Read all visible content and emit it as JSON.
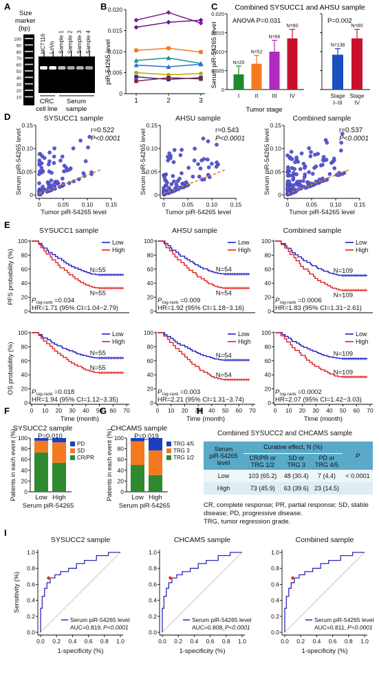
{
  "panel_letters": [
    "A",
    "B",
    "C",
    "D",
    "E",
    "F",
    "G",
    "H",
    "I"
  ],
  "panelA": {
    "size_marker": [
      "Size",
      "marker",
      "(bp)"
    ],
    "yticks": [
      "100",
      "90",
      "80",
      "70",
      "60",
      "50",
      "40",
      "30",
      "20",
      "10"
    ],
    "lanes": [
      "HCT116",
      "LoVo",
      "Sample 1",
      "Sample 2",
      "Sample 3",
      "Sample 4"
    ],
    "group1": [
      "CRC",
      "cell line"
    ],
    "group2": [
      "Serum",
      "sample"
    ]
  },
  "panelC": {
    "title": "Combined SYSUCC1 and AHSU sample",
    "anova": "ANOVA P=0.031",
    "p2": "P=0.002",
    "ylabel": "Serum piR-54265 level",
    "xlabel": "Tumor stage",
    "stage_labels": [
      "I",
      "II",
      "III",
      "IV"
    ],
    "n_labels": [
      "N=20",
      "N=52",
      "N=66",
      "N=80"
    ],
    "n2_labels": [
      "N=138",
      "N=80"
    ],
    "stage2_labels": [
      "Stage",
      "I–III",
      "Stage",
      "IV"
    ]
  },
  "panelD": {
    "titles": [
      "SYSUCC1 sample",
      "AHSU sample",
      "Combined sample"
    ],
    "r_values": [
      "r=0.522",
      "r=0.543",
      "r=0.537"
    ],
    "p_values": [
      "P<0.0001",
      "P<0.0001",
      "P<0.0001"
    ],
    "ylabel": "Serum piR-54265 level",
    "xlabel": "Tumor piR-54265 level"
  },
  "panelE": {
    "titles": [
      "SYSUCC1 sample",
      "AHSU sample",
      "Combined sample"
    ],
    "ylabel_pfs": "PFS probability (%)",
    "ylabel_os": "OS probability (%)",
    "xlabel": "Time (month)",
    "legend": [
      "Low",
      "High"
    ],
    "pfs_n": [
      "N=55",
      "N=55",
      "N=54",
      "N=54",
      "N=109",
      "N=109"
    ],
    "pfs_p": [
      "=0.034",
      "=0.009",
      "=0.0006"
    ],
    "pfs_hr": [
      "HR=1.71 (95% CI=1.04−2.79)",
      "HR=1.92 (95% CI=1.18−3.16)",
      "HR=1.83 (95% CI=1.31−2.61)"
    ],
    "os_n": [
      "N=55",
      "N=55",
      "N=54",
      "N=54",
      "N=109",
      "N=109"
    ],
    "os_p": [
      "=0.018",
      "=0.003",
      "=0.0002"
    ],
    "os_hr": [
      "HR=1.94 (95% CI=1.12−3.35)",
      "HR=2.21 (95% CI=1.31−3.74)",
      "HR=2.07 (95% CI=1.42−3.03)"
    ],
    "p_main": "P",
    "p_sub": "log-rank"
  },
  "panelF": {
    "title": "SYSUCC2 sample",
    "p": "P=0.010",
    "legend": [
      "PD",
      "SD",
      "CR/PR"
    ],
    "xlabel": "Serum piR-54265",
    "ylabel": "Patients in each event (%)"
  },
  "panelG": {
    "title": "CHCAMS sample",
    "p": "P=0.019",
    "legend": [
      "TRG 4/5",
      "TRG 3",
      "TRG 1/2"
    ],
    "xlabel": "Serum piR-54265",
    "ylabel": "Patients in each event (%)"
  },
  "panelH": {
    "title": "Combined SYSUCC2 and CHCAMS sample",
    "head_col1": [
      "Serum",
      "piR-54265",
      "level"
    ],
    "head_curative": "Curative effect, N (%)",
    "sub_heads": [
      "CR/PR or TRG 1/2",
      "SD or TRG 3",
      "PD or TRG 4/5"
    ],
    "head_p": "P",
    "rows": [
      {
        "level": "Low",
        "c1": "103 (65.2)",
        "c2": "48 (30.4)",
        "c3": "7 (4.4)",
        "p": "< 0.0001"
      },
      {
        "level": "High",
        "c1": "73 (45.9)",
        "c2": "63 (39.6)",
        "c3": "23 (14.5)",
        "p": ""
      }
    ],
    "footnote1": "CR, complete response; PR, partial response; SD, stable disease; PD, progressive disease.",
    "footnote2": "TRG, tumor regression grade."
  },
  "panelI": {
    "titles": [
      "SYSUCC2 sample",
      "CHCAMS sample",
      "Combined sample"
    ],
    "ylabel": "Sensitivity (%)",
    "xlabel": "1-specificity (%)",
    "legend": "Serum piR-54265 level",
    "auc_text": [
      "AUC=0.819, ",
      "AUC=0.808, ",
      "AUC=0.811, "
    ],
    "p_text": "P<0.0001"
  },
  "colors": {
    "low": "#1f1fc8",
    "high": "#e02020",
    "green": "#1f8a2a",
    "orange": "#f47a20",
    "purple": "#8b1a9c",
    "blue": "#1a4fc0",
    "dashed": "#e07a20",
    "dot": "#5a5ad8",
    "gray": "#888888"
  },
  "chart_data": [
    {
      "type": "line",
      "panel": "B",
      "ylabel": "piR-54265 level",
      "x": [
        1,
        2,
        3
      ],
      "ylim": [
        0,
        0.02
      ],
      "series": [
        {
          "values": [
            0.0175,
            0.0193,
            0.0168
          ]
        },
        {
          "values": [
            0.0158,
            0.017,
            0.0175
          ]
        },
        {
          "values": [
            0.0103,
            0.0108,
            0.0099
          ]
        },
        {
          "values": [
            0.0079,
            0.0085,
            0.0072
          ]
        },
        {
          "values": [
            0.0068,
            0.0064,
            0.007
          ]
        },
        {
          "values": [
            0.005,
            0.0045,
            0.0048
          ]
        },
        {
          "values": [
            0.004,
            0.0034,
            0.0038
          ]
        },
        {
          "values": [
            0.003,
            0.0038,
            0.0035
          ]
        }
      ]
    },
    {
      "type": "bar",
      "panel": "C",
      "categories": [
        "I",
        "II",
        "III",
        "IV"
      ],
      "values": [
        0.004,
        0.0068,
        0.01,
        0.0135
      ],
      "errors": [
        0.0022,
        0.0022,
        0.003,
        0.0024
      ],
      "ylim": [
        0,
        0.02
      ]
    },
    {
      "type": "bar",
      "panel": "C2",
      "categories": [
        "Stage I–III",
        "Stage IV"
      ],
      "values": [
        0.0092,
        0.0135
      ],
      "errors": [
        0.0016,
        0.0024
      ],
      "ylim": [
        0,
        0.02
      ]
    },
    {
      "type": "bar",
      "panel": "F",
      "stacked": true,
      "categories": [
        "Low",
        "High"
      ],
      "series": [
        {
          "name": "CR/PR",
          "values": [
            73,
            54
          ]
        },
        {
          "name": "SD",
          "values": [
            22,
            38
          ]
        },
        {
          "name": "PD",
          "values": [
            5,
            8
          ]
        }
      ],
      "ylim": [
        0,
        100
      ]
    },
    {
      "type": "bar",
      "panel": "G",
      "stacked": true,
      "categories": [
        "Low",
        "High"
      ],
      "series": [
        {
          "name": "TRG 1/2",
          "values": [
            50,
            31
          ]
        },
        {
          "name": "TRG 3",
          "values": [
            44,
            46
          ]
        },
        {
          "name": "TRG 4/5",
          "values": [
            6,
            23
          ]
        }
      ],
      "ylim": [
        0,
        100
      ]
    }
  ]
}
